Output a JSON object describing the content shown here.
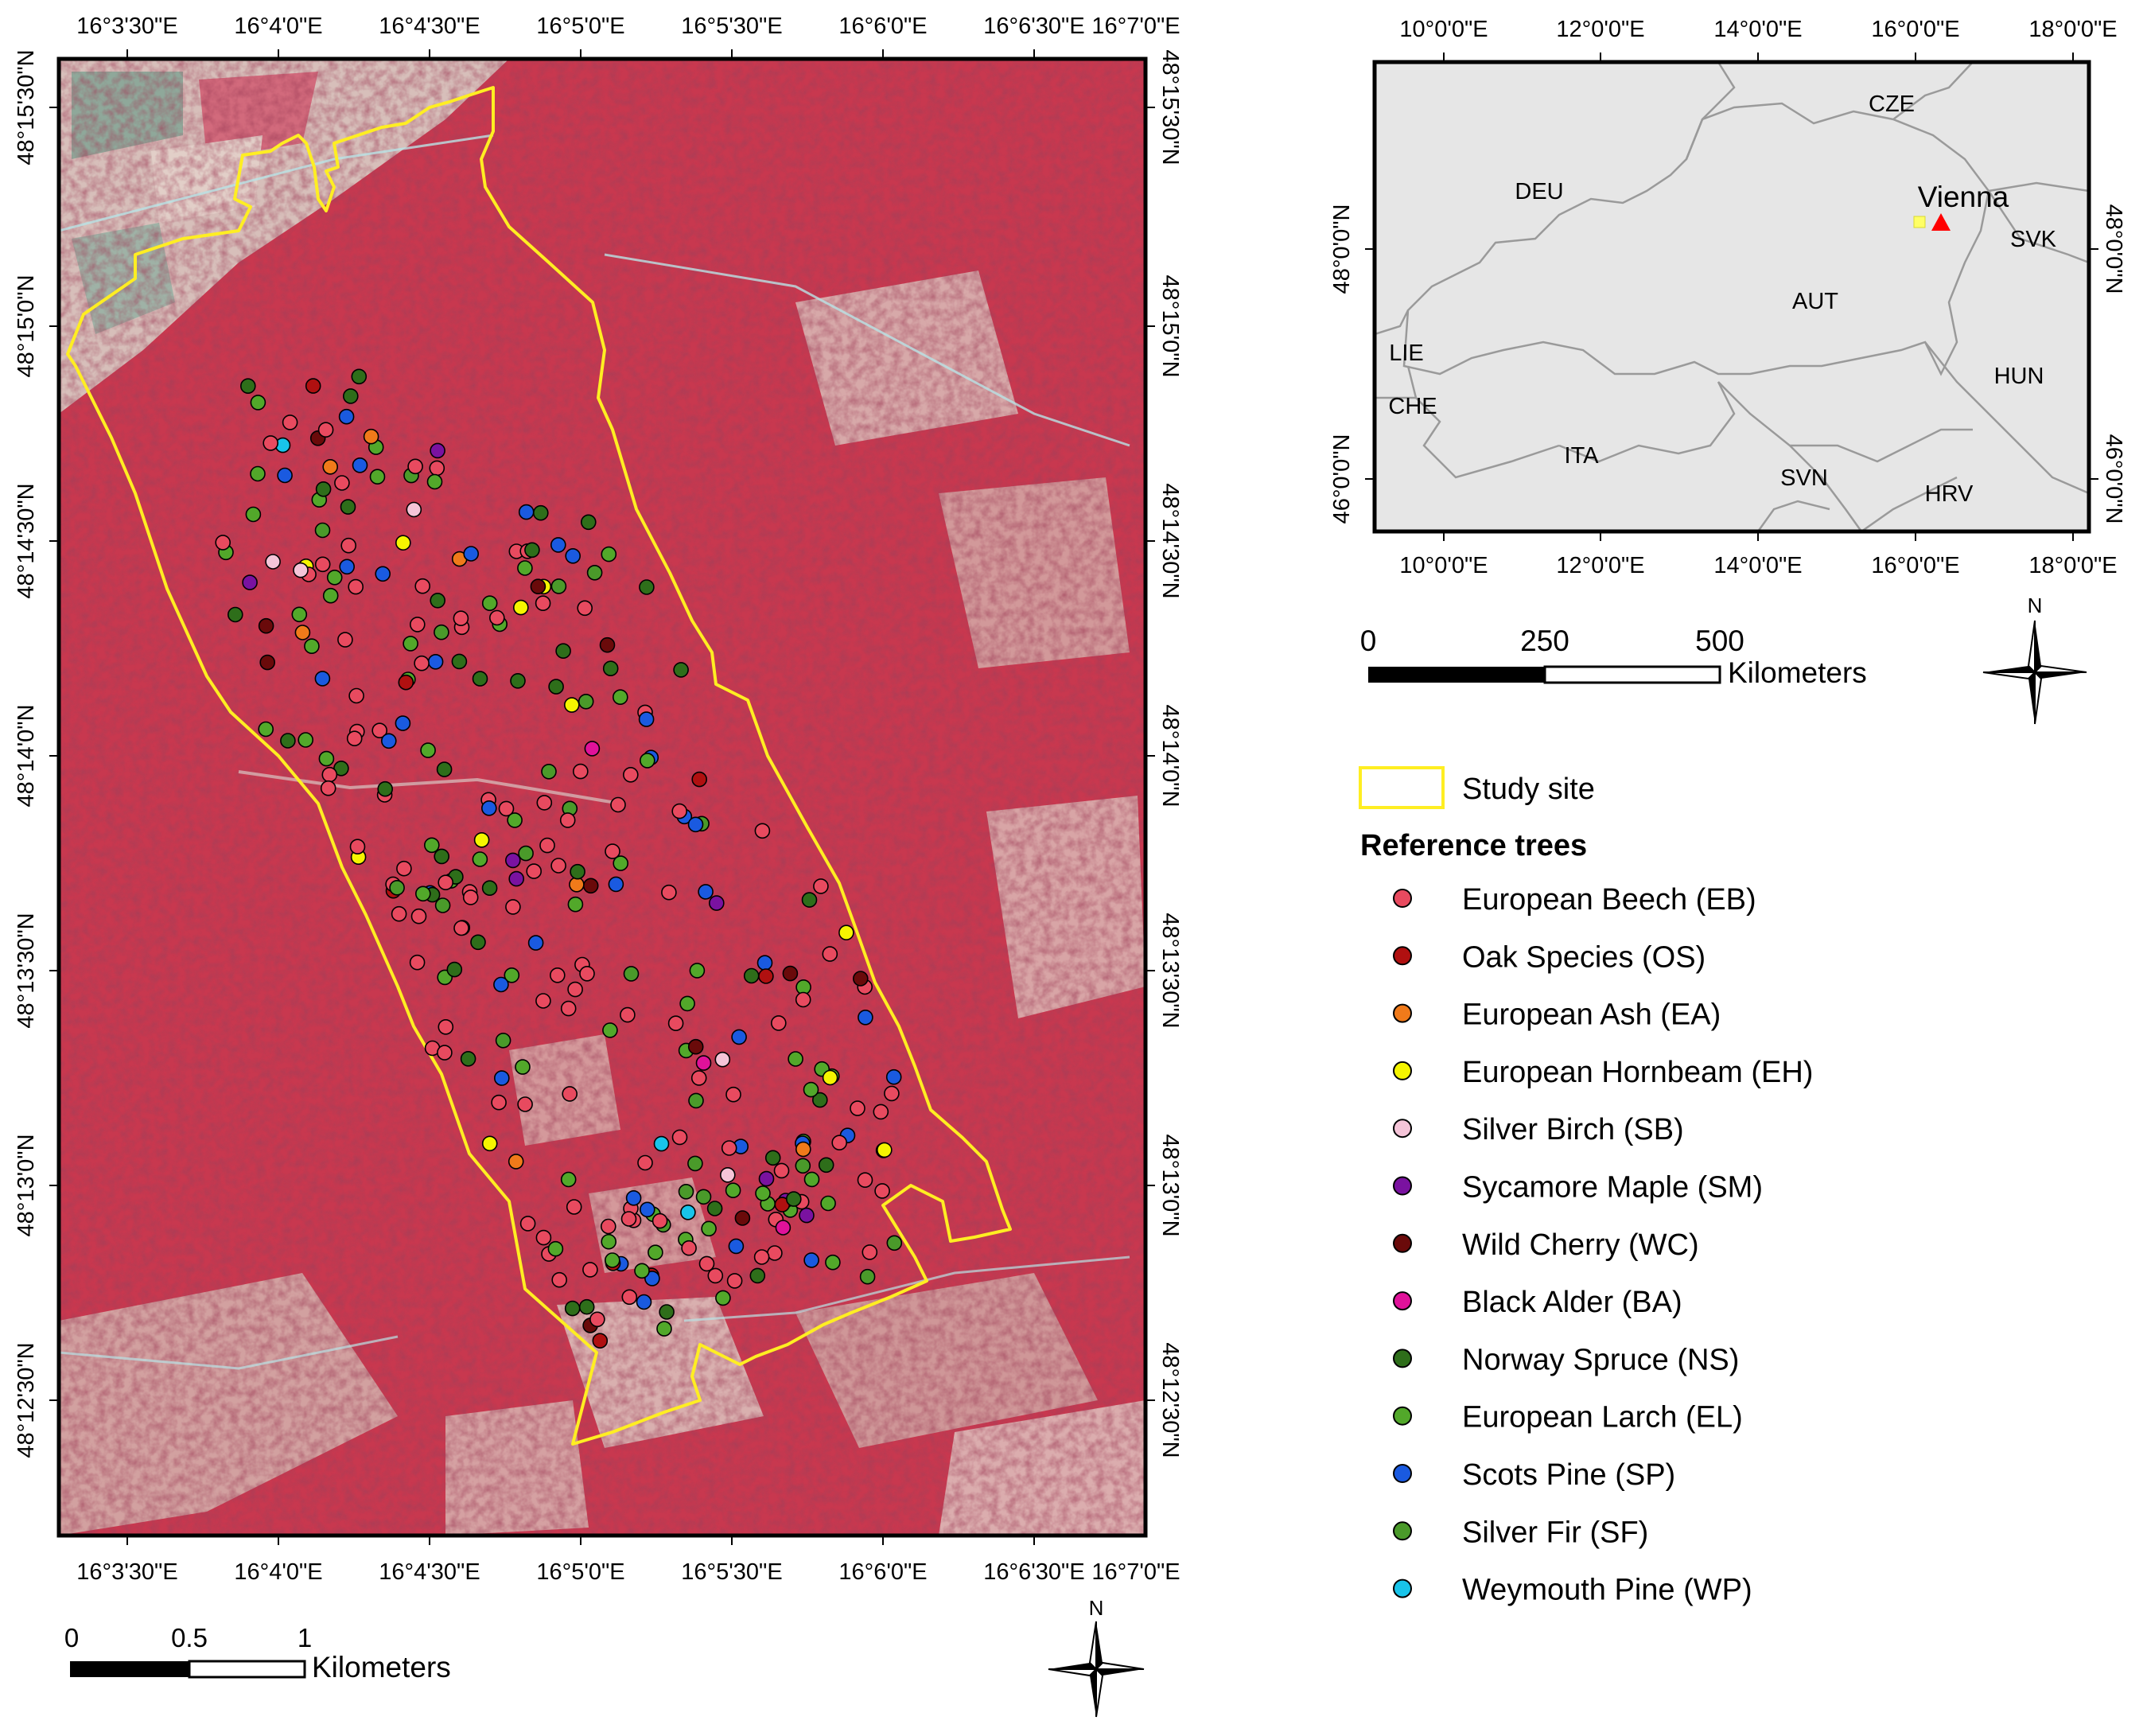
{
  "main_map": {
    "lon_ticks": [
      "16°3'30\"E",
      "16°4'0\"E",
      "16°4'30\"E",
      "16°5'0\"E",
      "16°5'30\"E",
      "16°6'0\"E",
      "16°6'30\"E",
      "16°7'0\"E"
    ],
    "lat_ticks": [
      "48°15'30\"N",
      "48°15'0\"N",
      "48°14'30\"N",
      "48°14'0\"N",
      "48°13'30\"N",
      "48°13'0\"N",
      "48°12'30\"N"
    ],
    "scale_bar": {
      "ticks": [
        "0",
        "0.5",
        "1"
      ],
      "unit": "Kilometers"
    },
    "north_label": "N",
    "colors": {
      "background": "#c8384f",
      "study_site_outline": "#ffee22",
      "field": "#d9c5c0",
      "green_field": "#8fa89a"
    }
  },
  "inset_map": {
    "lon_ticks": [
      "10°0'0\"E",
      "12°0'0\"E",
      "14°0'0\"E",
      "16°0'0\"E",
      "18°0'0\"E"
    ],
    "lat_ticks": [
      "48°0'0\"N",
      "46°0'0\"N"
    ],
    "country_labels": [
      "CZE",
      "DEU",
      "SVK",
      "AUT",
      "LIE",
      "CHE",
      "HUN",
      "ITA",
      "SVN",
      "HRV"
    ],
    "city_label": "Vienna",
    "scale_bar": {
      "ticks": [
        "0",
        "250",
        "500"
      ],
      "unit": "Kilometers"
    },
    "north_label": "N",
    "colors": {
      "land": "#e6e6e6",
      "border": "#9a9a9a",
      "vienna_marker": "#ff0000",
      "site_marker": "#ffff66"
    }
  },
  "legend": {
    "study_site_label": "Study site",
    "reference_title": "Reference trees",
    "items": [
      {
        "label": "European Beech (EB)",
        "color": "#e84a5f"
      },
      {
        "label": "Oak Species (OS)",
        "color": "#b01010"
      },
      {
        "label": "European Ash (EA)",
        "color": "#f07a1a"
      },
      {
        "label": "European Hornbeam (EH)",
        "color": "#f5f500"
      },
      {
        "label": "Silver Birch (SB)",
        "color": "#f5c4d8"
      },
      {
        "label": "Sycamore Maple (SM)",
        "color": "#7a12a0"
      },
      {
        "label": "Wild Cherry (WC)",
        "color": "#6a0a0a"
      },
      {
        "label": "Black Alder (BA)",
        "color": "#e0129a"
      },
      {
        "label": "Norway Spruce (NS)",
        "color": "#2e6e1a"
      },
      {
        "label": "European Larch (EL)",
        "color": "#52a82a"
      },
      {
        "label": "Scots Pine (SP)",
        "color": "#1a5ae0"
      },
      {
        "label": "Silver Fir (SF)",
        "color": "#4a9a2a"
      },
      {
        "label": "Weymouth Pine (WP)",
        "color": "#18c4ea"
      }
    ]
  }
}
